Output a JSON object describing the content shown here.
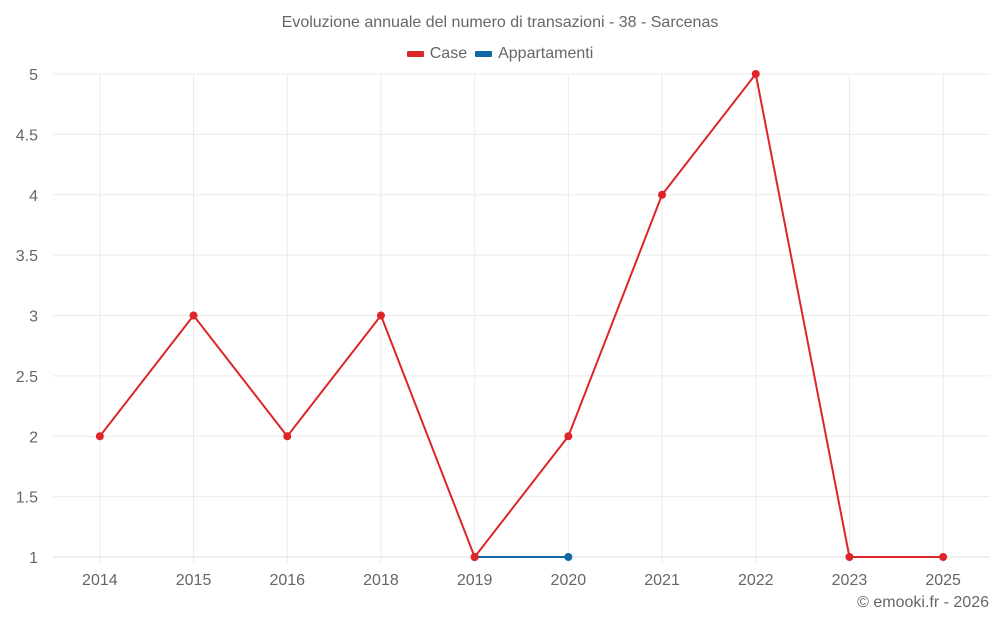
{
  "header": {
    "title": "Evoluzione annuale del numero di transazioni - 38 - Sarcenas"
  },
  "legend": [
    {
      "label": "Case",
      "color": "#dd2629"
    },
    {
      "label": "Appartamenti",
      "color": "#0f68a1"
    }
  ],
  "footer": {
    "credit": "© emooki.fr - 2026"
  },
  "colors": {
    "grid": "#ebebeb",
    "axis": "#dddddd",
    "text": "#666666"
  },
  "chart_data": {
    "type": "line",
    "title": "Evoluzione annuale del numero di transazioni - 38 - Sarcenas",
    "xlabel": "",
    "ylabel": "",
    "categories": [
      "2014",
      "2015",
      "2016",
      "2018",
      "2019",
      "2020",
      "2021",
      "2022",
      "2023",
      "2025"
    ],
    "series": [
      {
        "name": "Case",
        "color": "#dd2629",
        "values": [
          2,
          3,
          2,
          3,
          1,
          2,
          4,
          5,
          1,
          1
        ]
      },
      {
        "name": "Appartamenti",
        "color": "#0f68a1",
        "values": [
          null,
          null,
          null,
          null,
          1,
          1,
          null,
          null,
          null,
          null
        ]
      }
    ],
    "ylim": [
      1,
      5
    ],
    "yticks": [
      "1",
      "1.5",
      "2",
      "2.5",
      "3",
      "3.5",
      "4",
      "4.5",
      "5"
    ],
    "grid": true,
    "legend_position": "top"
  }
}
